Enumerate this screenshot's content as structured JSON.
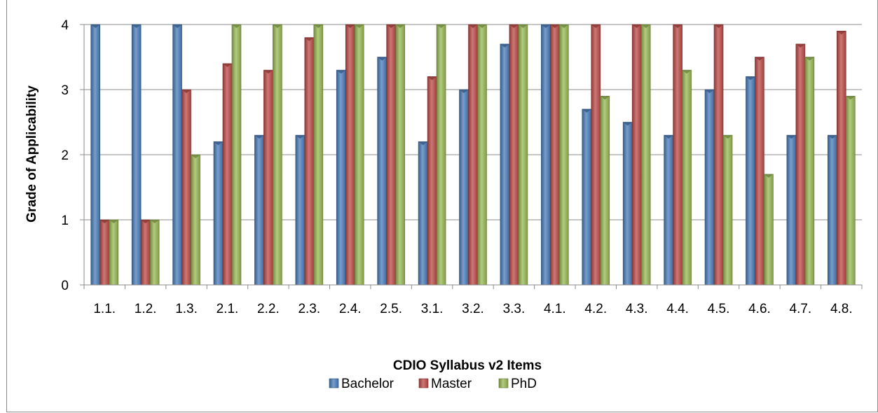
{
  "chart_data": {
    "type": "bar",
    "xlabel": "CDIO Syllabus v2 Items",
    "ylabel": "Grade of Applicability",
    "ylim": [
      0,
      4
    ],
    "yticks": [
      "0",
      "1",
      "2",
      "3",
      "4"
    ],
    "grid": true,
    "legend_position": "bottom",
    "categories": [
      "1.1.",
      "1.2.",
      "1.3.",
      "2.1.",
      "2.2.",
      "2.3.",
      "2.4.",
      "2.5.",
      "3.1.",
      "3.2.",
      "3.3.",
      "4.1.",
      "4.2.",
      "4.3.",
      "4.4.",
      "4.5.",
      "4.6.",
      "4.7.",
      "4.8."
    ],
    "series": [
      {
        "name": "Bachelor",
        "color": "#4a7ebb",
        "values": [
          4,
          4,
          4,
          2.2,
          2.3,
          2.3,
          3.3,
          3.5,
          2.2,
          3,
          3.7,
          4,
          2.7,
          2.5,
          2.3,
          3,
          3.2,
          2.3,
          2.3
        ]
      },
      {
        "name": "Master",
        "color": "#be4b48",
        "values": [
          1,
          1,
          3,
          3.4,
          3.3,
          3.8,
          4,
          4,
          3.2,
          4,
          4,
          4,
          4,
          4,
          4,
          4,
          3.5,
          3.7,
          3.9
        ]
      },
      {
        "name": "PhD",
        "color": "#98b954",
        "values": [
          1,
          1,
          2,
          4,
          4,
          4,
          4,
          4,
          4,
          4,
          4,
          4,
          2.9,
          4,
          3.3,
          2.3,
          1.7,
          3.5,
          2.9
        ]
      }
    ]
  }
}
